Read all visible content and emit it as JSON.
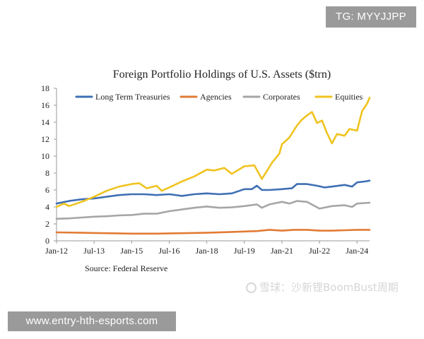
{
  "badges": {
    "top_right": "TG: MYYJJPP",
    "bottom_left": "www.entry-hth-esports.com"
  },
  "watermark": {
    "text": "雪球：沙新锂BoomBust周期",
    "color": "#d6d6d6"
  },
  "chart_data": {
    "type": "line",
    "title": "Foreign Portfolio Holdings of U.S. Assets ($trn)",
    "xlabel": "",
    "ylabel": "",
    "source": "Source: Federal Reserve",
    "ylim": [
      0,
      18
    ],
    "yticks": [
      "0",
      "2",
      "4",
      "6",
      "8",
      "10",
      "12",
      "14",
      "16",
      "18"
    ],
    "xlim": [
      2012.0,
      2024.5
    ],
    "xticks": [
      {
        "label": "Jan-12",
        "x": 2012.0
      },
      {
        "label": "Jul-13",
        "x": 2013.5
      },
      {
        "label": "Jan-15",
        "x": 2015.0
      },
      {
        "label": "Jul-16",
        "x": 2016.5
      },
      {
        "label": "Jan-18",
        "x": 2018.0
      },
      {
        "label": "Jul-19",
        "x": 2019.5
      },
      {
        "label": "Jan-21",
        "x": 2021.0
      },
      {
        "label": "Jul-22",
        "x": 2022.5
      },
      {
        "label": "Jan-24",
        "x": 2024.0
      }
    ],
    "grid": false,
    "legend_position": "top",
    "series": [
      {
        "name": "Long Term Treasuries",
        "color": "#3f6fb3",
        "points": [
          [
            2012.0,
            4.4
          ],
          [
            2012.5,
            4.7
          ],
          [
            2013.0,
            4.9
          ],
          [
            2013.5,
            5.0
          ],
          [
            2014.0,
            5.2
          ],
          [
            2014.5,
            5.4
          ],
          [
            2015.0,
            5.5
          ],
          [
            2015.5,
            5.5
          ],
          [
            2016.0,
            5.4
          ],
          [
            2016.5,
            5.5
          ],
          [
            2017.0,
            5.3
          ],
          [
            2017.5,
            5.5
          ],
          [
            2018.0,
            5.6
          ],
          [
            2018.5,
            5.5
          ],
          [
            2019.0,
            5.6
          ],
          [
            2019.5,
            6.1
          ],
          [
            2019.8,
            6.1
          ],
          [
            2020.0,
            6.5
          ],
          [
            2020.2,
            6.0
          ],
          [
            2020.5,
            6.0
          ],
          [
            2021.0,
            6.1
          ],
          [
            2021.4,
            6.2
          ],
          [
            2021.6,
            6.7
          ],
          [
            2022.0,
            6.7
          ],
          [
            2022.4,
            6.5
          ],
          [
            2022.7,
            6.3
          ],
          [
            2023.0,
            6.4
          ],
          [
            2023.5,
            6.6
          ],
          [
            2023.8,
            6.4
          ],
          [
            2024.0,
            6.9
          ],
          [
            2024.3,
            7.0
          ],
          [
            2024.5,
            7.1
          ]
        ]
      },
      {
        "name": "Agencies",
        "color": "#e27b34",
        "points": [
          [
            2012.0,
            1.0
          ],
          [
            2013.0,
            0.95
          ],
          [
            2014.0,
            0.9
          ],
          [
            2015.0,
            0.85
          ],
          [
            2016.0,
            0.85
          ],
          [
            2017.0,
            0.9
          ],
          [
            2018.0,
            0.95
          ],
          [
            2019.0,
            1.05
          ],
          [
            2020.0,
            1.15
          ],
          [
            2020.5,
            1.3
          ],
          [
            2021.0,
            1.2
          ],
          [
            2021.5,
            1.3
          ],
          [
            2022.0,
            1.3
          ],
          [
            2022.5,
            1.2
          ],
          [
            2023.0,
            1.2
          ],
          [
            2023.5,
            1.25
          ],
          [
            2024.0,
            1.3
          ],
          [
            2024.5,
            1.3
          ]
        ]
      },
      {
        "name": "Corporates",
        "color": "#a6a6a6",
        "points": [
          [
            2012.0,
            2.6
          ],
          [
            2012.5,
            2.65
          ],
          [
            2013.0,
            2.75
          ],
          [
            2013.5,
            2.85
          ],
          [
            2014.0,
            2.9
          ],
          [
            2014.5,
            3.0
          ],
          [
            2015.0,
            3.05
          ],
          [
            2015.5,
            3.2
          ],
          [
            2016.0,
            3.2
          ],
          [
            2016.5,
            3.5
          ],
          [
            2017.0,
            3.7
          ],
          [
            2017.5,
            3.9
          ],
          [
            2018.0,
            4.05
          ],
          [
            2018.5,
            3.9
          ],
          [
            2019.0,
            3.95
          ],
          [
            2019.5,
            4.1
          ],
          [
            2020.0,
            4.3
          ],
          [
            2020.2,
            3.9
          ],
          [
            2020.5,
            4.3
          ],
          [
            2021.0,
            4.6
          ],
          [
            2021.3,
            4.4
          ],
          [
            2021.6,
            4.7
          ],
          [
            2022.0,
            4.6
          ],
          [
            2022.5,
            3.8
          ],
          [
            2023.0,
            4.1
          ],
          [
            2023.5,
            4.2
          ],
          [
            2023.8,
            4.0
          ],
          [
            2024.0,
            4.4
          ],
          [
            2024.5,
            4.5
          ]
        ]
      },
      {
        "name": "Equities",
        "color": "#f0c31f",
        "points": [
          [
            2012.0,
            4.0
          ],
          [
            2012.3,
            4.4
          ],
          [
            2012.5,
            4.1
          ],
          [
            2012.8,
            4.4
          ],
          [
            2013.0,
            4.6
          ],
          [
            2013.5,
            5.2
          ],
          [
            2014.0,
            5.9
          ],
          [
            2014.5,
            6.4
          ],
          [
            2015.0,
            6.7
          ],
          [
            2015.3,
            6.8
          ],
          [
            2015.6,
            6.2
          ],
          [
            2016.0,
            6.5
          ],
          [
            2016.2,
            5.9
          ],
          [
            2016.5,
            6.3
          ],
          [
            2017.0,
            7.0
          ],
          [
            2017.5,
            7.6
          ],
          [
            2018.0,
            8.4
          ],
          [
            2018.3,
            8.3
          ],
          [
            2018.7,
            8.6
          ],
          [
            2019.0,
            7.9
          ],
          [
            2019.5,
            8.8
          ],
          [
            2019.9,
            8.9
          ],
          [
            2020.2,
            7.3
          ],
          [
            2020.6,
            9.2
          ],
          [
            2020.9,
            10.3
          ],
          [
            2021.0,
            11.4
          ],
          [
            2021.3,
            12.2
          ],
          [
            2021.6,
            13.6
          ],
          [
            2021.8,
            14.3
          ],
          [
            2022.0,
            14.8
          ],
          [
            2022.2,
            15.2
          ],
          [
            2022.4,
            13.9
          ],
          [
            2022.6,
            14.2
          ],
          [
            2022.8,
            12.7
          ],
          [
            2023.0,
            11.5
          ],
          [
            2023.2,
            12.6
          ],
          [
            2023.5,
            12.4
          ],
          [
            2023.7,
            13.2
          ],
          [
            2024.0,
            13.0
          ],
          [
            2024.2,
            15.3
          ],
          [
            2024.4,
            16.2
          ],
          [
            2024.5,
            16.9
          ]
        ]
      }
    ]
  }
}
